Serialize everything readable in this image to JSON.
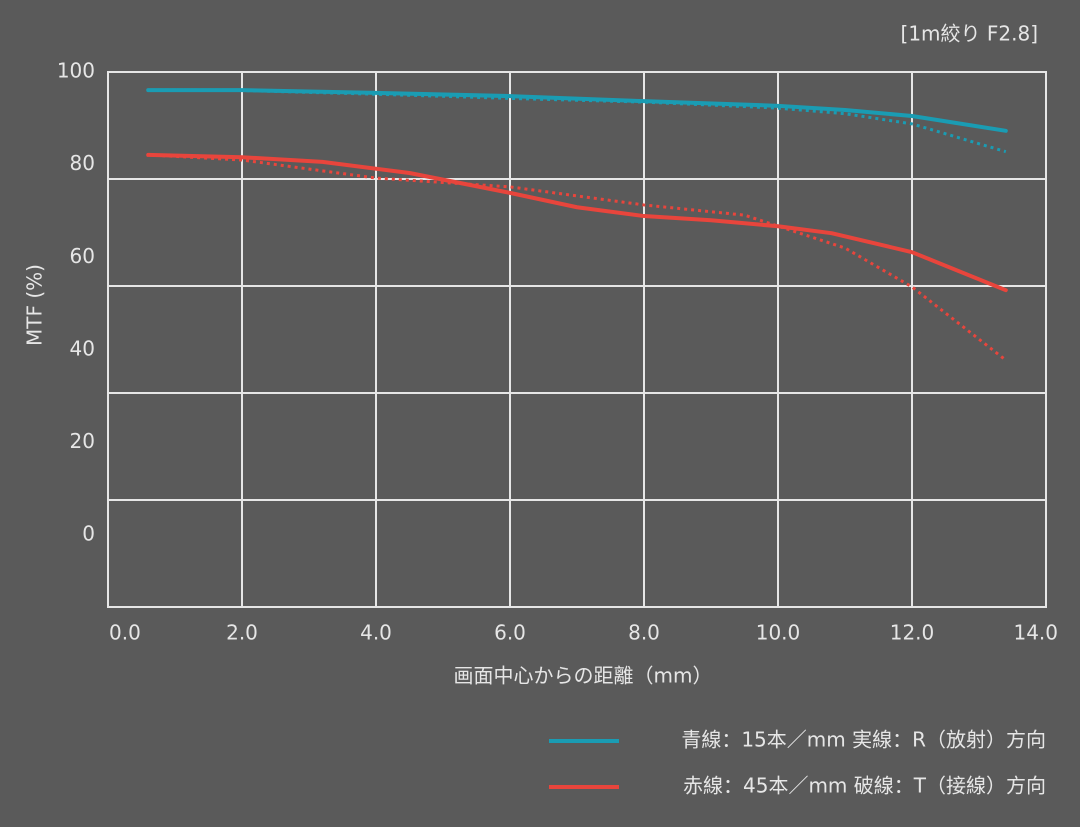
{
  "chart_data": {
    "type": "line",
    "title": "[1m絞り F2.8]",
    "x_label": "画面中心からの距離（mm）",
    "y_label": "MTF (%)",
    "xlim": [
      0,
      14
    ],
    "xticks": [
      {
        "value": 0,
        "label": "0.0"
      },
      {
        "value": 2,
        "label": "2.0"
      },
      {
        "value": 4,
        "label": "4.0"
      },
      {
        "value": 6,
        "label": "6.0"
      },
      {
        "value": 8,
        "label": "8.0"
      },
      {
        "value": 10,
        "label": "10.0"
      },
      {
        "value": 12,
        "label": "12.0"
      },
      {
        "value": 14,
        "label": "14.0"
      }
    ],
    "ylim": [
      -15.5,
      100
    ],
    "yticks": [
      0,
      20,
      40,
      60,
      80,
      100
    ],
    "ygrid": [
      7.6,
      30.7,
      53.8,
      76.9
    ],
    "xgrid": [
      2,
      4,
      6,
      8,
      10,
      12
    ],
    "grid": true,
    "series": [
      {
        "color": "#1a9cb3",
        "dashed": false,
        "x": [
          0.6,
          2,
          4,
          6,
          8,
          10,
          11,
          12,
          13.4
        ],
        "values": [
          96.1,
          96.1,
          95.5,
          94.8,
          93.7,
          92.7,
          91.8,
          90.5,
          87.3
        ]
      },
      {
        "color": "#1a9cb3",
        "dashed": true,
        "x": [
          0.6,
          2,
          4,
          6,
          8,
          10,
          11,
          12,
          13.4
        ],
        "values": [
          96.1,
          96,
          95.2,
          94.3,
          93.5,
          92.2,
          91,
          88.8,
          82.8
        ]
      },
      {
        "color": "#e8453c",
        "dashed": false,
        "x": [
          0.6,
          2,
          3.2,
          4.5,
          6,
          7,
          8,
          9,
          10,
          10.8,
          12,
          13.4
        ],
        "values": [
          82.1,
          81.6,
          80.6,
          78.2,
          73.9,
          70.8,
          68.9,
          68,
          66.7,
          65.2,
          61.1,
          52.9
        ]
      },
      {
        "color": "#e8453c",
        "dashed": true,
        "x": [
          0.6,
          2,
          4,
          6,
          8,
          9.5,
          11,
          12,
          13.4
        ],
        "values": [
          82.1,
          81,
          77.1,
          75.2,
          71.3,
          69.1,
          62,
          53.6,
          37.8
        ]
      }
    ],
    "legend": [
      {
        "color": "#1a9cb3",
        "label": "青線：15本／mm 実線：R（放射）方向"
      },
      {
        "color": "#e8453c",
        "label": "赤線：45本／mm 破線：T（接線）方向"
      }
    ]
  }
}
